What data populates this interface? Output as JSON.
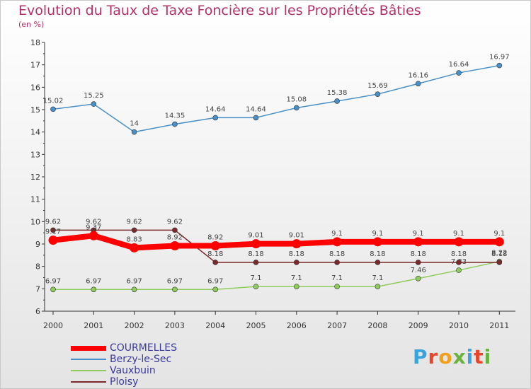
{
  "title": "Evolution du Taux de Taxe Foncière sur les Propriétés Bâties",
  "subtitle": "(en %)",
  "logo": {
    "text": "Proxiti",
    "colors": [
      "#3aa3dd",
      "#e8452c",
      "#f2a01c",
      "#6ab33e",
      "#3aa3dd",
      "#e8452c",
      "#6ab33e"
    ]
  },
  "chart_data": {
    "type": "line",
    "x": [
      "2000",
      "2001",
      "2002",
      "2003",
      "2004",
      "2005",
      "2006",
      "2007",
      "2008",
      "2009",
      "2010",
      "2011"
    ],
    "ylim": [
      6,
      18
    ],
    "yticks": [
      "6",
      "7",
      "8",
      "9",
      "10",
      "11",
      "12",
      "13",
      "14",
      "15",
      "16",
      "17",
      "18"
    ],
    "grid": false,
    "legend_position": "bottom-left",
    "series": [
      {
        "name": "Berzy-le-Sec",
        "color": "#4a90c8",
        "values": [
          15.02,
          15.25,
          14,
          14.35,
          14.64,
          14.64,
          15.08,
          15.38,
          15.69,
          16.16,
          16.64,
          16.97
        ],
        "labels": [
          "15.02",
          "15.25",
          "14",
          "14.35",
          "14.64",
          "14.64",
          "15.08",
          "15.38",
          "15.69",
          "16.16",
          "16.64",
          "16.97"
        ]
      },
      {
        "name": "Vauxbuin",
        "color": "#8fcc5e",
        "values": [
          6.97,
          6.97,
          6.97,
          6.97,
          6.97,
          7.1,
          7.1,
          7.1,
          7.1,
          7.46,
          7.83,
          8.22
        ],
        "labels": [
          "6.97",
          "6.97",
          "6.97",
          "6.97",
          "6.97",
          "7.1",
          "7.1",
          "7.1",
          "7.1",
          "7.46",
          "7.83",
          "8.22"
        ]
      },
      {
        "name": "Ploisy",
        "color": "#7a2a2a",
        "values": [
          9.62,
          9.62,
          9.62,
          9.62,
          8.18,
          8.18,
          8.18,
          8.18,
          8.18,
          8.18,
          8.18,
          8.18
        ],
        "labels": [
          "9.62",
          "9.62",
          "9.62",
          "9.62",
          "8.18",
          "8.18",
          "8.18",
          "8.18",
          "8.18",
          "8.18",
          "8.18",
          "8.18"
        ]
      },
      {
        "name": "COURMELLES",
        "color": "#ff0000",
        "values": [
          9.17,
          9.37,
          8.83,
          8.92,
          8.92,
          9.01,
          9.01,
          9.1,
          9.1,
          9.1,
          9.1,
          9.1
        ],
        "labels": [
          "9.17",
          "9.37",
          "8.83",
          "8.92",
          "8.92",
          "9.01",
          "9.01",
          "9.1",
          "9.1",
          "9.1",
          "9.1",
          "9.1"
        ]
      }
    ],
    "legend": [
      {
        "name": "COURMELLES",
        "color": "#ff0000"
      },
      {
        "name": "Berzy-le-Sec",
        "color": "#4a90c8"
      },
      {
        "name": "Vauxbuin",
        "color": "#8fcc5e"
      },
      {
        "name": "Ploisy",
        "color": "#7a2a2a"
      }
    ]
  }
}
